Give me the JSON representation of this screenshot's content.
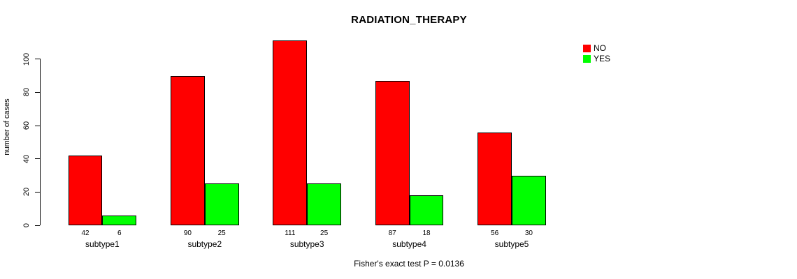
{
  "chart_data": {
    "type": "bar",
    "title": "RADIATION_THERAPY",
    "xlabel": "",
    "ylabel": "number of cases",
    "categories": [
      "subtype1",
      "subtype2",
      "subtype3",
      "subtype4",
      "subtype5"
    ],
    "series": [
      {
        "name": "NO",
        "color": "#ff0000",
        "values": [
          42,
          90,
          111,
          87,
          56
        ]
      },
      {
        "name": "YES",
        "color": "#00ff00",
        "values": [
          6,
          25,
          25,
          18,
          30
        ]
      }
    ],
    "bar_value_labels": [
      [
        "42",
        "6"
      ],
      [
        "90",
        "25"
      ],
      [
        "111",
        "25"
      ],
      [
        "87",
        "18"
      ],
      [
        "56",
        "30"
      ]
    ],
    "yticks": [
      "0",
      "20",
      "40",
      "60",
      "80",
      "100"
    ],
    "ylim": [
      0,
      111
    ],
    "grid": false,
    "legend_position": "top-right-margin",
    "footer": "Fisher's exact test P = 0.0136"
  },
  "colors": {
    "background": "#ffffff",
    "axis": "#000000",
    "bar_border": "#000000",
    "text": "#000000"
  }
}
